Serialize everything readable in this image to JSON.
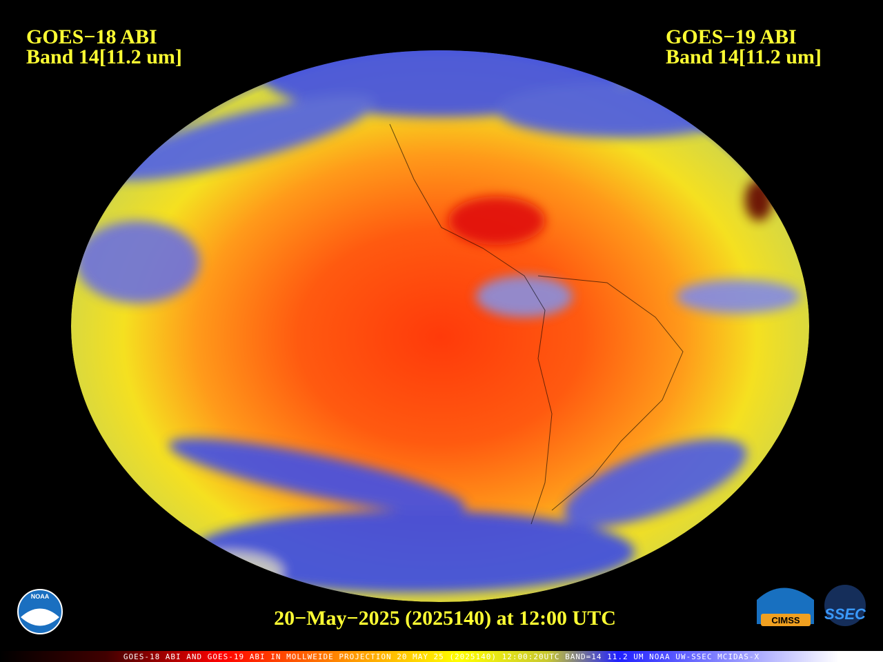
{
  "header": {
    "left": {
      "title": "GOES−18 ABI",
      "band": "Band 14[11.2 um]"
    },
    "right": {
      "title": "GOES−19 ABI",
      "band": "Band 14[11.2 um]"
    }
  },
  "footer": {
    "date": "20−May−2025 (2025140) at 12:00 UTC",
    "caption": "GOES-18 ABI AND GOES-19 ABI IN MOLLWEIDE PROJECTION 20 MAY 25 (2025140) 12:00:20UTC BAND=14 11.2 UM NOAA UW-SSEC MCIDAS-X"
  },
  "logos": {
    "noaa": "NOAA",
    "cimss": "CIMSS",
    "ssec": "SSEC"
  }
}
